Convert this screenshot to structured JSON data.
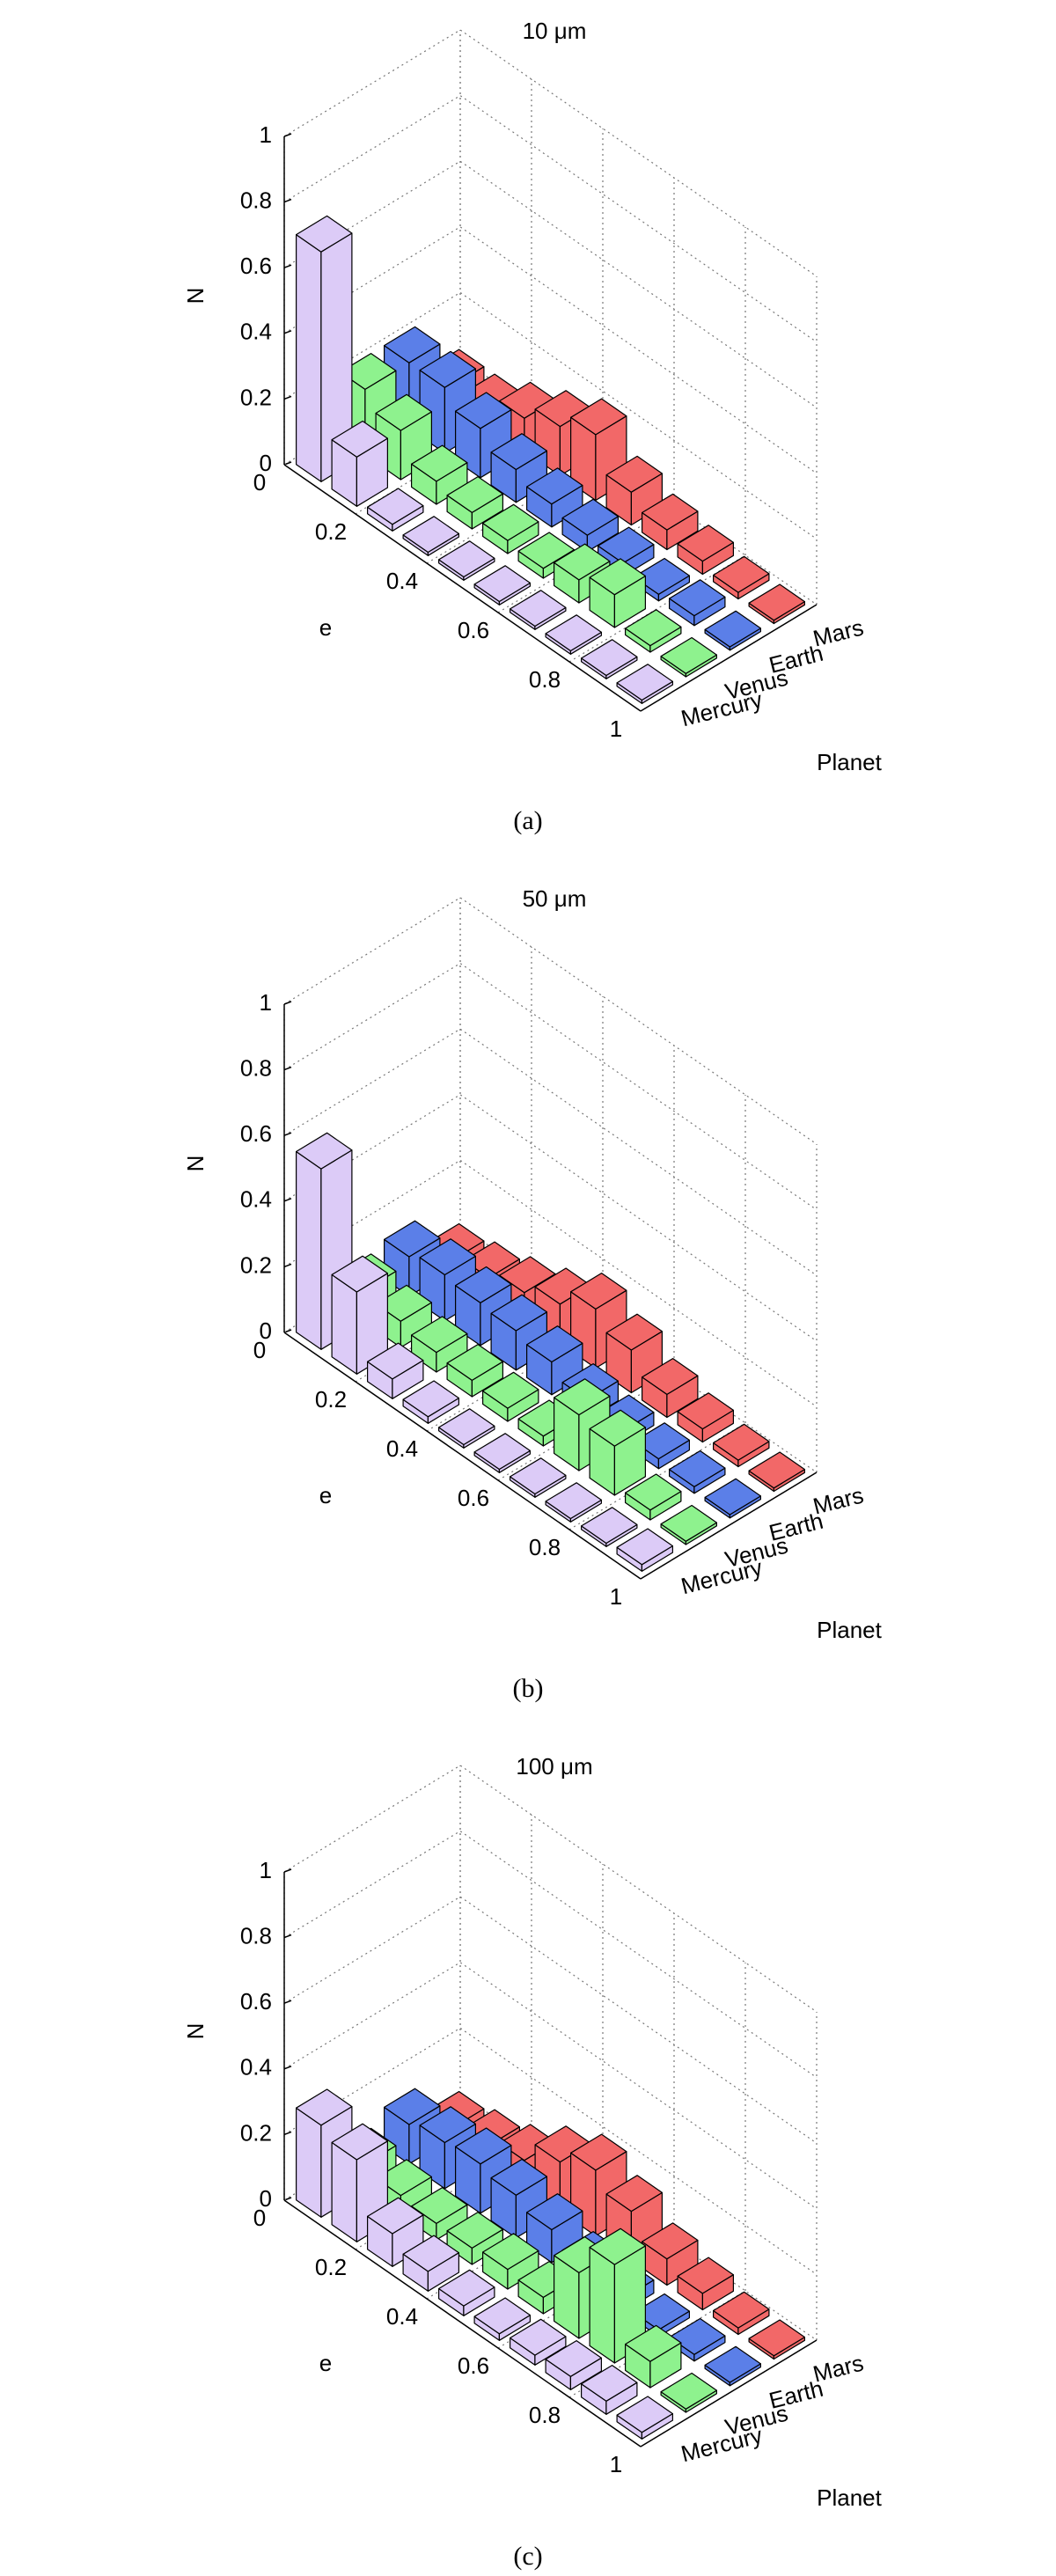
{
  "charts": [
    {
      "type": "bar3d",
      "title": "10 μm",
      "caption": "(a)",
      "x_label": "e",
      "y_label": "Planet",
      "z_label": "N",
      "xlim": [
        0,
        1
      ],
      "xticks": [
        0,
        0.2,
        0.4,
        0.6,
        0.8,
        1
      ],
      "zlim": [
        0,
        1
      ],
      "zticks": [
        0,
        0.2,
        0.4,
        0.6,
        0.8,
        1
      ],
      "series": [
        {
          "name": "Mercury",
          "color": "#dccbf7",
          "values": [
            0.7,
            0.15,
            0.02,
            0.01,
            0.01,
            0.01,
            0.01,
            0.01,
            0.01,
            0.01
          ]
        },
        {
          "name": "Venus",
          "color": "#8ef28e",
          "values": [
            0.2,
            0.15,
            0.07,
            0.05,
            0.04,
            0.03,
            0.07,
            0.1,
            0.02,
            0.01
          ]
        },
        {
          "name": "Earth",
          "color": "#5b7fe8",
          "values": [
            0.2,
            0.2,
            0.15,
            0.1,
            0.07,
            0.05,
            0.04,
            0.02,
            0.03,
            0.01
          ]
        },
        {
          "name": "Mars",
          "color": "#f26868",
          "values": [
            0.05,
            0.05,
            0.1,
            0.15,
            0.2,
            0.1,
            0.06,
            0.04,
            0.02,
            0.01
          ]
        }
      ]
    },
    {
      "type": "bar3d",
      "title": "50 μm",
      "caption": "(b)",
      "x_label": "e",
      "y_label": "Planet",
      "z_label": "N",
      "xlim": [
        0,
        1
      ],
      "xticks": [
        0,
        0.2,
        0.4,
        0.6,
        0.8,
        1
      ],
      "zlim": [
        0,
        1
      ],
      "zticks": [
        0,
        0.2,
        0.4,
        0.6,
        0.8,
        1
      ],
      "series": [
        {
          "name": "Mercury",
          "color": "#dccbf7",
          "values": [
            0.55,
            0.25,
            0.06,
            0.02,
            0.01,
            0.01,
            0.01,
            0.01,
            0.01,
            0.02
          ]
        },
        {
          "name": "Venus",
          "color": "#8ef28e",
          "values": [
            0.1,
            0.08,
            0.06,
            0.05,
            0.04,
            0.03,
            0.17,
            0.15,
            0.03,
            0.01
          ]
        },
        {
          "name": "Earth",
          "color": "#5b7fe8",
          "values": [
            0.12,
            0.14,
            0.13,
            0.12,
            0.1,
            0.06,
            0.04,
            0.03,
            0.02,
            0.01
          ]
        },
        {
          "name": "Mars",
          "color": "#f26868",
          "values": [
            0.03,
            0.05,
            0.08,
            0.12,
            0.18,
            0.13,
            0.07,
            0.04,
            0.02,
            0.01
          ]
        }
      ]
    },
    {
      "type": "bar3d",
      "title": "100 μm",
      "caption": "(c)",
      "x_label": "e",
      "y_label": "Planet",
      "z_label": "N",
      "xlim": [
        0,
        1
      ],
      "xticks": [
        0,
        0.2,
        0.4,
        0.6,
        0.8,
        1
      ],
      "zlim": [
        0,
        1
      ],
      "zticks": [
        0,
        0.2,
        0.4,
        0.6,
        0.8,
        1
      ],
      "series": [
        {
          "name": "Mercury",
          "color": "#dccbf7",
          "values": [
            0.28,
            0.25,
            0.1,
            0.06,
            0.03,
            0.02,
            0.03,
            0.04,
            0.04,
            0.02
          ]
        },
        {
          "name": "Venus",
          "color": "#8ef28e",
          "values": [
            0.08,
            0.06,
            0.05,
            0.05,
            0.06,
            0.05,
            0.2,
            0.3,
            0.08,
            0.01
          ]
        },
        {
          "name": "Earth",
          "color": "#5b7fe8",
          "values": [
            0.12,
            0.14,
            0.15,
            0.13,
            0.1,
            0.06,
            0.04,
            0.02,
            0.02,
            0.01
          ]
        },
        {
          "name": "Mars",
          "color": "#f26868",
          "values": [
            0.03,
            0.05,
            0.08,
            0.15,
            0.2,
            0.15,
            0.08,
            0.05,
            0.02,
            0.01
          ]
        }
      ]
    }
  ]
}
